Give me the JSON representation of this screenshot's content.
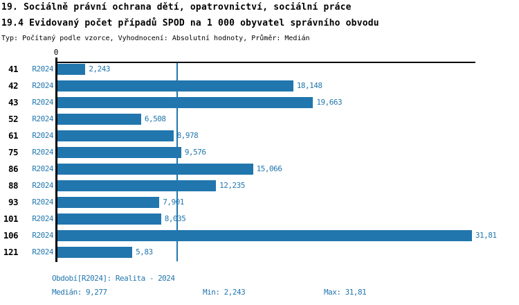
{
  "title": {
    "line1": "19. Sociálně právní ochrana dětí, opatrovnictví, sociální práce",
    "line2": "19.4 Evidovaný počet případů SPOD na 1 000 obyvatel správního obvodu",
    "line3": "Typ: Počítaný podle vzorce, Vyhodnocení: Absolutní hodnoty, Průměr: Medián"
  },
  "colors": {
    "bar": "#2176AE",
    "blue_text": "#2176AE",
    "median_line": "#2176AE",
    "axis": "#000000",
    "background": "#FFFFFF"
  },
  "chart_data": {
    "type": "bar",
    "orientation": "horizontal",
    "title": "19.4 Evidovaný počet případů SPOD na 1 000 obyvatel správního obvodu",
    "xlabel": "",
    "ylabel": "",
    "x_axis": {
      "zero_label": "0",
      "min": 0,
      "max_visible": 32.1
    },
    "grid": false,
    "legend_position": "none",
    "series_label": "R2024",
    "categories": [
      "41",
      "42",
      "43",
      "52",
      "61",
      "75",
      "86",
      "88",
      "93",
      "101",
      "106",
      "121"
    ],
    "values": [
      2.243,
      18.148,
      19.663,
      6.508,
      8.978,
      9.576,
      15.066,
      12.235,
      7.901,
      8.035,
      31.81,
      5.83
    ],
    "value_labels": [
      "2,243",
      "18,148",
      "19,663",
      "6,508",
      "8,978",
      "9,576",
      "15,066",
      "12,235",
      "7,901",
      "8,035",
      "31,81",
      "5,83"
    ],
    "median": 9.277,
    "min": 2.243,
    "max": 31.81
  },
  "footer": {
    "period": "Období[R2024]: Realita - 2024",
    "median": "Medián: 9,277",
    "min": "Min: 2,243",
    "max": "Max: 31,81"
  }
}
